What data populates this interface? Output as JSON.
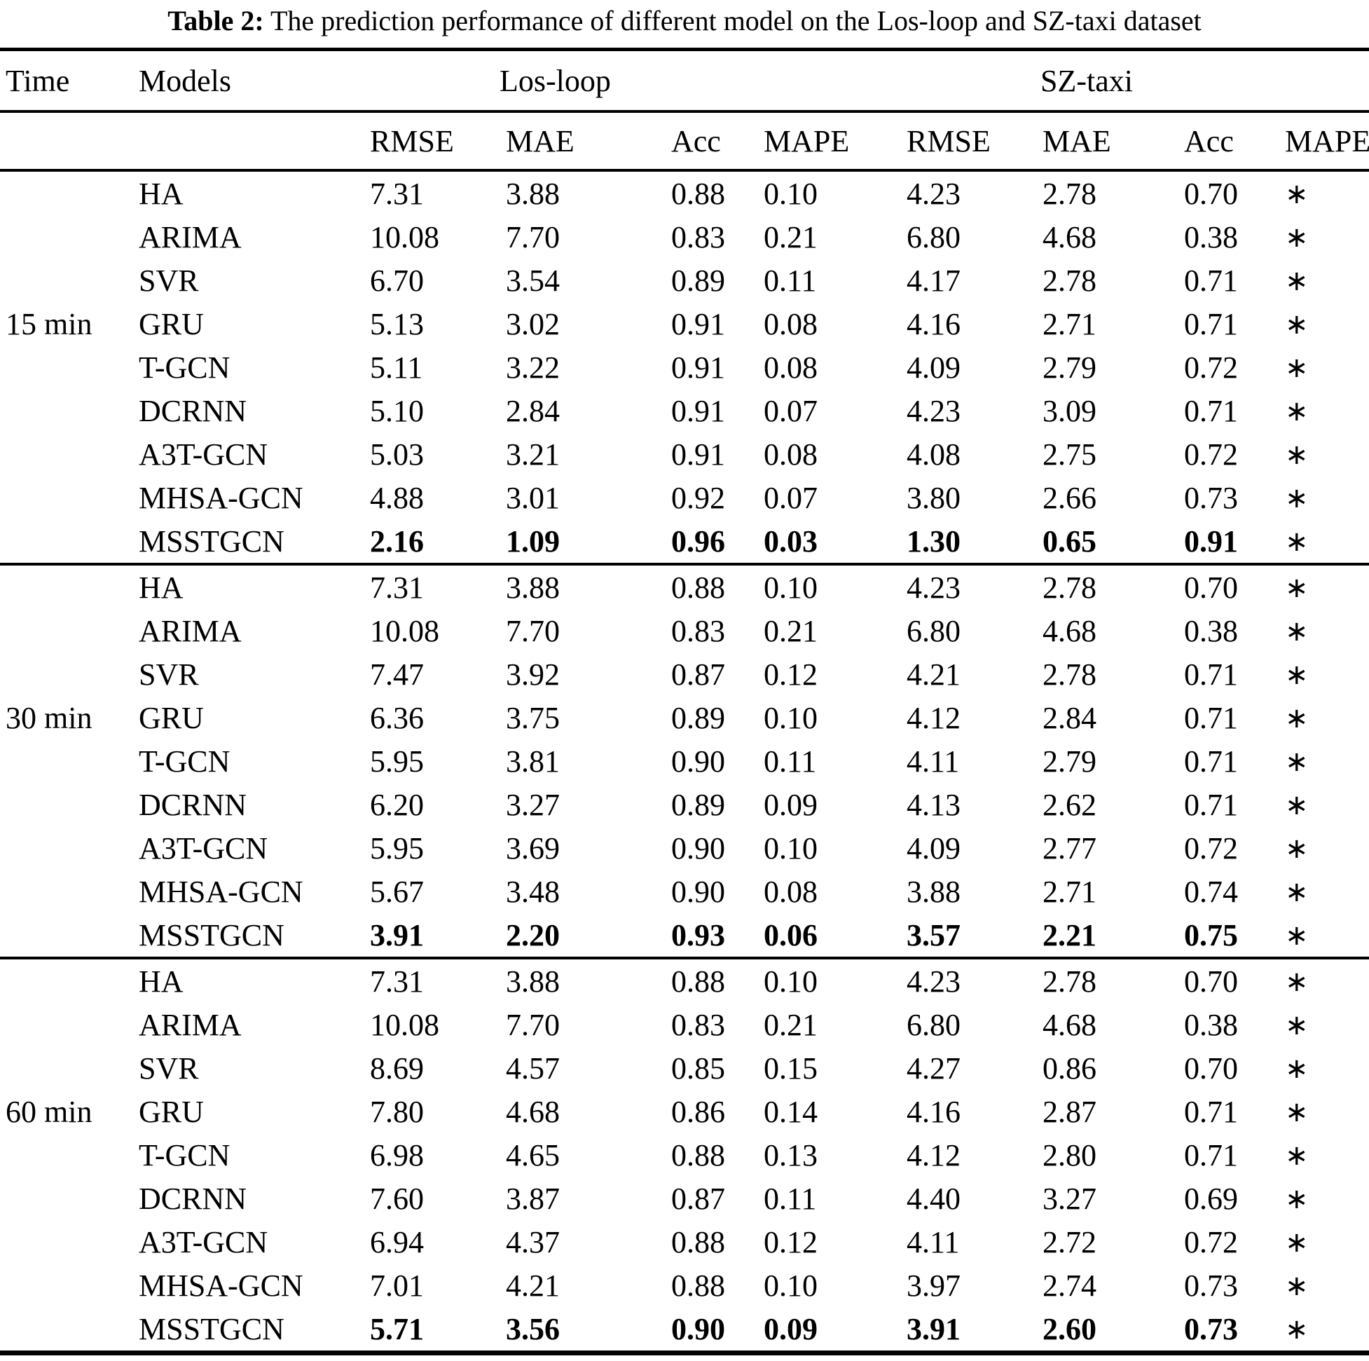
{
  "caption": {
    "label": "Table 2:",
    "text": "The prediction performance of different model on the Los-loop and SZ-taxi dataset"
  },
  "table": {
    "col_headers": {
      "time": "Time",
      "models": "Models",
      "dataset1": "Los-loop",
      "dataset2": "SZ-taxi"
    },
    "metric_headers": [
      "RMSE",
      "MAE",
      "Acc",
      "MAPE",
      "RMSE",
      "MAE",
      "Acc",
      "MAPE"
    ],
    "groups": [
      {
        "time": "15 min",
        "time_label_row": 3,
        "rows": [
          {
            "model": "HA",
            "bold": false,
            "values": [
              "7.31",
              "3.88",
              "0.88",
              "0.10",
              "4.23",
              "2.78",
              "0.70",
              "∗"
            ]
          },
          {
            "model": "ARIMA",
            "bold": false,
            "values": [
              "10.08",
              "7.70",
              "0.83",
              "0.21",
              "6.80",
              "4.68",
              "0.38",
              "∗"
            ]
          },
          {
            "model": "SVR",
            "bold": false,
            "values": [
              "6.70",
              "3.54",
              "0.89",
              "0.11",
              "4.17",
              "2.78",
              "0.71",
              "∗"
            ]
          },
          {
            "model": "GRU",
            "bold": false,
            "values": [
              "5.13",
              "3.02",
              "0.91",
              "0.08",
              "4.16",
              "2.71",
              "0.71",
              "∗"
            ]
          },
          {
            "model": "T-GCN",
            "bold": false,
            "values": [
              "5.11",
              "3.22",
              "0.91",
              "0.08",
              "4.09",
              "2.79",
              "0.72",
              "∗"
            ]
          },
          {
            "model": "DCRNN",
            "bold": false,
            "values": [
              "5.10",
              "2.84",
              "0.91",
              "0.07",
              "4.23",
              "3.09",
              "0.71",
              "∗"
            ]
          },
          {
            "model": "A3T-GCN",
            "bold": false,
            "values": [
              "5.03",
              "3.21",
              "0.91",
              "0.08",
              "4.08",
              "2.75",
              "0.72",
              "∗"
            ]
          },
          {
            "model": "MHSA-GCN",
            "bold": false,
            "values": [
              "4.88",
              "3.01",
              "0.92",
              "0.07",
              "3.80",
              "2.66",
              "0.73",
              "∗"
            ]
          },
          {
            "model": "MSSTGCN",
            "bold": true,
            "values": [
              "2.16",
              "1.09",
              "0.96",
              "0.03",
              "1.30",
              "0.65",
              "0.91",
              "∗"
            ]
          }
        ]
      },
      {
        "time": "30 min",
        "time_label_row": 3,
        "rows": [
          {
            "model": "HA",
            "bold": false,
            "values": [
              "7.31",
              "3.88",
              "0.88",
              "0.10",
              "4.23",
              "2.78",
              "0.70",
              "∗"
            ]
          },
          {
            "model": "ARIMA",
            "bold": false,
            "values": [
              "10.08",
              "7.70",
              "0.83",
              "0.21",
              "6.80",
              "4.68",
              "0.38",
              "∗"
            ]
          },
          {
            "model": "SVR",
            "bold": false,
            "values": [
              "7.47",
              "3.92",
              "0.87",
              "0.12",
              "4.21",
              "2.78",
              "0.71",
              "∗"
            ]
          },
          {
            "model": "GRU",
            "bold": false,
            "values": [
              "6.36",
              "3.75",
              "0.89",
              "0.10",
              "4.12",
              "2.84",
              "0.71",
              "∗"
            ]
          },
          {
            "model": "T-GCN",
            "bold": false,
            "values": [
              "5.95",
              "3.81",
              "0.90",
              "0.11",
              "4.11",
              "2.79",
              "0.71",
              "∗"
            ]
          },
          {
            "model": "DCRNN",
            "bold": false,
            "values": [
              "6.20",
              "3.27",
              "0.89",
              "0.09",
              "4.13",
              "2.62",
              "0.71",
              "∗"
            ]
          },
          {
            "model": "A3T-GCN",
            "bold": false,
            "values": [
              "5.95",
              "3.69",
              "0.90",
              "0.10",
              "4.09",
              "2.77",
              "0.72",
              "∗"
            ]
          },
          {
            "model": "MHSA-GCN",
            "bold": false,
            "values": [
              "5.67",
              "3.48",
              "0.90",
              "0.08",
              "3.88",
              "2.71",
              "0.74",
              "∗"
            ]
          },
          {
            "model": "MSSTGCN",
            "bold": true,
            "values": [
              "3.91",
              "2.20",
              "0.93",
              "0.06",
              "3.57",
              "2.21",
              "0.75",
              "∗"
            ]
          }
        ]
      },
      {
        "time": "60 min",
        "time_label_row": 3,
        "rows": [
          {
            "model": "HA",
            "bold": false,
            "values": [
              "7.31",
              "3.88",
              "0.88",
              "0.10",
              "4.23",
              "2.78",
              "0.70",
              "∗"
            ]
          },
          {
            "model": "ARIMA",
            "bold": false,
            "values": [
              "10.08",
              "7.70",
              "0.83",
              "0.21",
              "6.80",
              "4.68",
              "0.38",
              "∗"
            ]
          },
          {
            "model": "SVR",
            "bold": false,
            "values": [
              "8.69",
              "4.57",
              "0.85",
              "0.15",
              "4.27",
              "0.86",
              "0.70",
              "∗"
            ]
          },
          {
            "model": "GRU",
            "bold": false,
            "values": [
              "7.80",
              "4.68",
              "0.86",
              "0.14",
              "4.16",
              "2.87",
              "0.71",
              "∗"
            ]
          },
          {
            "model": "T-GCN",
            "bold": false,
            "values": [
              "6.98",
              "4.65",
              "0.88",
              "0.13",
              "4.12",
              "2.80",
              "0.71",
              "∗"
            ]
          },
          {
            "model": "DCRNN",
            "bold": false,
            "values": [
              "7.60",
              "3.87",
              "0.87",
              "0.11",
              "4.40",
              "3.27",
              "0.69",
              "∗"
            ]
          },
          {
            "model": "A3T-GCN",
            "bold": false,
            "values": [
              "6.94",
              "4.37",
              "0.88",
              "0.12",
              "4.11",
              "2.72",
              "0.72",
              "∗"
            ]
          },
          {
            "model": "MHSA-GCN",
            "bold": false,
            "values": [
              "7.01",
              "4.21",
              "0.88",
              "0.10",
              "3.97",
              "2.74",
              "0.73",
              "∗"
            ]
          },
          {
            "model": "MSSTGCN",
            "bold": true,
            "values": [
              "5.71",
              "3.56",
              "0.90",
              "0.09",
              "3.91",
              "2.60",
              "0.73",
              "∗"
            ]
          }
        ]
      }
    ]
  }
}
